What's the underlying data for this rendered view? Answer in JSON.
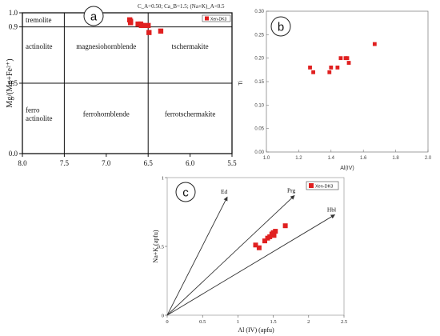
{
  "chart_data": [
    {
      "panel": "a",
      "type": "scatter",
      "title": "",
      "header_note": "C_A=0.50; Ca_B=1.5; (Na+K)_A<0.5",
      "xlabel": "",
      "ylabel": "Mg/(Mg+Fe²⁺)",
      "xlim": [
        8.0,
        5.5
      ],
      "ylim": [
        0.0,
        1.0
      ],
      "x_reversed": true,
      "x_ticks": [
        "8.0",
        "7.5",
        "7.0",
        "6.5",
        "6.0",
        "5.5"
      ],
      "y_ticks": [
        "0.0",
        "0.5",
        "0.9",
        "1.0"
      ],
      "boundaries": {
        "x": [
          7.5,
          6.5
        ],
        "y": [
          0.5,
          0.9
        ]
      },
      "fields": [
        {
          "name": "tremolite",
          "x": 7.8,
          "y": 0.95
        },
        {
          "name": "actinolite",
          "x": 7.77,
          "y": 0.76
        },
        {
          "name": "magnesiohornblende",
          "x": 7.0,
          "y": 0.76
        },
        {
          "name": "tschermakite",
          "x": 6.0,
          "y": 0.76
        },
        {
          "name": "ferro",
          "x": 7.78,
          "y": 0.31
        },
        {
          "name": "actinolite",
          "x": 7.77,
          "y": 0.25
        },
        {
          "name": "ferrohornblende",
          "x": 7.0,
          "y": 0.28
        },
        {
          "name": "ferrotschermakite",
          "x": 6.0,
          "y": 0.28
        }
      ],
      "legend": {
        "entries": [
          "Xen-DK3"
        ],
        "position": "top-right",
        "color": "#e02020"
      },
      "series": [
        {
          "name": "Xen-DK3",
          "points": [
            [
              6.72,
              0.95
            ],
            [
              6.71,
              0.94
            ],
            [
              6.71,
              0.93
            ],
            [
              6.62,
              0.92
            ],
            [
              6.59,
              0.92
            ],
            [
              6.58,
              0.91
            ],
            [
              6.56,
              0.91
            ],
            [
              6.5,
              0.91
            ],
            [
              6.49,
              0.86
            ],
            [
              6.35,
              0.87
            ]
          ]
        }
      ]
    },
    {
      "panel": "b",
      "type": "scatter",
      "title": "",
      "xlabel": "Al(IV)",
      "ylabel": "Ti",
      "xlim": [
        1.0,
        2.0
      ],
      "ylim": [
        0.0,
        0.3
      ],
      "x_ticks": [
        "1.0",
        "1.2",
        "1.4",
        "1.6",
        "1.8",
        "2.0"
      ],
      "y_ticks": [
        "0.00",
        "0.05",
        "0.10",
        "0.15",
        "0.20",
        "0.25",
        "0.30"
      ],
      "legend": {
        "entries": [],
        "position": "none"
      },
      "series": [
        {
          "name": "",
          "points": [
            [
              1.27,
              0.18
            ],
            [
              1.29,
              0.17
            ],
            [
              1.39,
              0.17
            ],
            [
              1.4,
              0.18
            ],
            [
              1.44,
              0.18
            ],
            [
              1.46,
              0.2
            ],
            [
              1.49,
              0.2
            ],
            [
              1.5,
              0.2
            ],
            [
              1.51,
              0.19
            ],
            [
              1.67,
              0.23
            ]
          ]
        }
      ]
    },
    {
      "panel": "c",
      "type": "scatter",
      "title": "",
      "xlabel": "Al (IV) (apfu)",
      "ylabel": "Na+K (apfu)",
      "xlim": [
        0,
        2.5
      ],
      "ylim": [
        0,
        1.0
      ],
      "x_ticks": [
        "0",
        "0.5",
        "1",
        "1.5",
        "2",
        "2.5"
      ],
      "y_ticks": [
        "0",
        "0.5",
        "1"
      ],
      "vectors": [
        {
          "name": "Ed",
          "end": [
            0.85,
            0.86
          ]
        },
        {
          "name": "Prg",
          "end": [
            1.8,
            0.87
          ]
        },
        {
          "name": "Hbl",
          "end": [
            2.37,
            0.73
          ]
        }
      ],
      "legend": {
        "entries": [
          "Xen-DK3"
        ],
        "position": "top-right",
        "color": "#e02020"
      },
      "series": [
        {
          "name": "Xen-DK3",
          "points": [
            [
              1.25,
              0.51
            ],
            [
              1.3,
              0.49
            ],
            [
              1.38,
              0.54
            ],
            [
              1.42,
              0.56
            ],
            [
              1.45,
              0.57
            ],
            [
              1.48,
              0.59
            ],
            [
              1.5,
              0.6
            ],
            [
              1.51,
              0.58
            ],
            [
              1.53,
              0.61
            ],
            [
              1.67,
              0.65
            ]
          ]
        }
      ]
    }
  ]
}
